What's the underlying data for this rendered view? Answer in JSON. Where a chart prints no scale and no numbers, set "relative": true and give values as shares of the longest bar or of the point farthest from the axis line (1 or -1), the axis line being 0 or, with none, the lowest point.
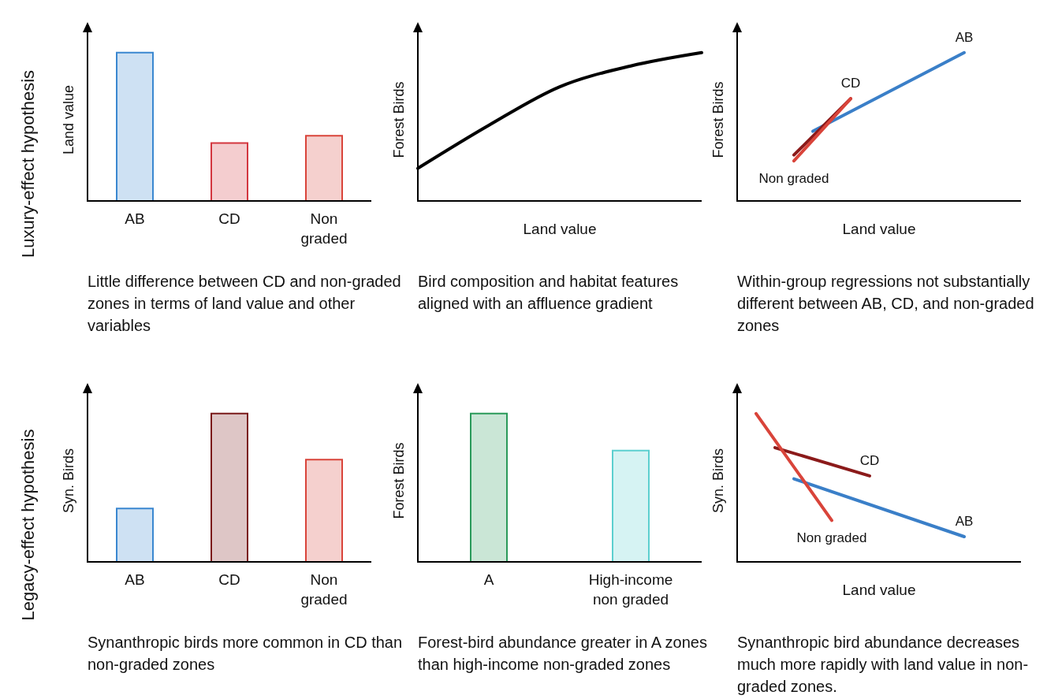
{
  "chart_data": [
    {
      "type": "bar",
      "relative": true,
      "ylabel": "Land value",
      "categories": [
        "AB",
        "CD",
        "Non graded"
      ],
      "values": [
        1,
        0.39,
        0.44
      ],
      "colors": [
        "#3a87d0",
        "#d3363f",
        "#d9443a"
      ],
      "annotations": [
        "Little difference between CD and non-graded zones in terms of land value and other variables",
        "Luxury-effect hypothesis"
      ]
    },
    {
      "type": "line",
      "relative": true,
      "ylabel": "Forest Birds",
      "xlabel": "Land value",
      "categories": [
        null,
        null,
        null,
        null,
        null
      ],
      "values": [
        0.22,
        0.51,
        0.77,
        0.91,
        1
      ],
      "color": "#000000",
      "annotations": [
        "Bird composition and habitat features aligned with an affluence gradient"
      ]
    },
    {
      "type": "line",
      "relative": true,
      "ylabel": "Forest Birds",
      "xlabel": "Land value",
      "categories": [
        null,
        null,
        null,
        null,
        null,
        null,
        null,
        null,
        null,
        null,
        null,
        null,
        null,
        null,
        null,
        null
      ],
      "series": [
        {
          "name": "AB",
          "color": "#3a7fc8",
          "values": [
            null,
            null,
            null,
            null,
            0.47,
            null,
            null,
            null,
            null,
            null,
            null,
            null,
            1,
            null,
            null,
            null
          ]
        },
        {
          "name": "CD",
          "color": "#8b1a1a",
          "values": [
            null,
            null,
            null,
            0.31,
            null,
            null,
            0.69,
            null,
            null,
            null,
            null,
            null,
            null,
            null,
            null,
            null
          ]
        },
        {
          "name": "Non graded",
          "color": "#d9443a",
          "values": [
            null,
            null,
            null,
            0.27,
            null,
            null,
            0.69,
            null,
            null,
            null,
            null,
            null,
            null,
            null,
            null,
            null
          ]
        }
      ],
      "annotations": [
        "Within-group regressions not substantially different between AB, CD, and non-graded zones"
      ]
    },
    {
      "type": "bar",
      "relative": true,
      "ylabel": "Syn. Birds",
      "categories": [
        "AB",
        "CD",
        "Non graded"
      ],
      "values": [
        0.36,
        1,
        0.69
      ],
      "colors": [
        "#3a87d0",
        "#7a1a1a",
        "#d9443a"
      ],
      "annotations": [
        "Synanthropic birds more common in CD than non-graded zones",
        "Legacy-effect hypothesis"
      ]
    },
    {
      "type": "bar",
      "relative": true,
      "ylabel": "Forest Birds",
      "categories": [
        "A",
        "High-income non graded"
      ],
      "values": [
        1,
        0.75
      ],
      "colors": [
        "#2a9a5a",
        "#5ccfcf"
      ],
      "annotations": [
        "Forest-bird abundance greater in A zones than high-income non-graded zones"
      ]
    },
    {
      "type": "line",
      "relative": true,
      "ylabel": "Syn. Birds",
      "xlabel": "Land value",
      "categories": [
        null,
        null,
        null,
        null,
        null,
        null,
        null,
        null,
        null,
        null,
        null,
        null,
        null,
        null,
        null,
        null
      ],
      "series": [
        {
          "name": "CD",
          "color": "#8b1a1a",
          "values": [
            null,
            null,
            0.77,
            null,
            null,
            null,
            null,
            0.58,
            null,
            null,
            null,
            null,
            null,
            null,
            null,
            null
          ]
        },
        {
          "name": "AB",
          "color": "#3a7fc8",
          "values": [
            null,
            null,
            null,
            0.56,
            null,
            null,
            null,
            null,
            null,
            null,
            null,
            null,
            0.17,
            null,
            null,
            null
          ]
        },
        {
          "name": "Non graded",
          "color": "#d9443a",
          "values": [
            null,
            1,
            null,
            null,
            null,
            0.28,
            null,
            null,
            null,
            null,
            null,
            null,
            null,
            null,
            null,
            null
          ]
        }
      ],
      "annotations": [
        "Synanthropic bird abundance decreases much more rapidly with land value in non-graded zones."
      ]
    }
  ]
}
